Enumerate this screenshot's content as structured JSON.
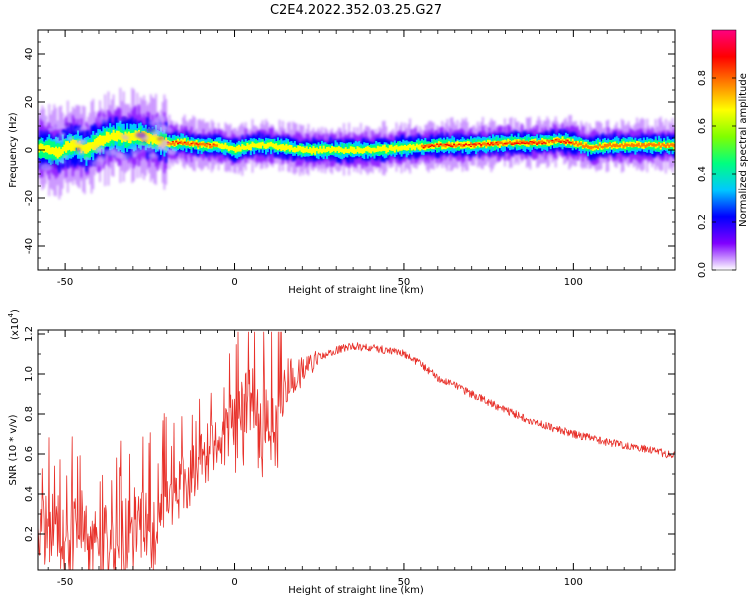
{
  "title": "C2E4.2022.352.03.25.G27",
  "chart_data": [
    {
      "type": "heatmap",
      "xlabel": "Height of straight line (km)",
      "ylabel": "Frequency (Hz)",
      "xlim": [
        -58,
        130
      ],
      "ylim": [
        -50,
        50
      ],
      "x_ticks": [
        -50,
        0,
        50,
        100
      ],
      "y_ticks": [
        -40,
        -20,
        0,
        20,
        40
      ],
      "ridge": {
        "x": [
          -58,
          -55,
          -52,
          -50,
          -47,
          -44,
          -41,
          -38,
          -35,
          -32,
          -29,
          -26,
          -23,
          -20,
          -15,
          -10,
          -5,
          0,
          5,
          10,
          15,
          20,
          30,
          40,
          50,
          60,
          70,
          80,
          85,
          90,
          95,
          100,
          105,
          110,
          120,
          130
        ],
        "freq": [
          1,
          0,
          -1,
          1,
          2,
          0,
          3,
          5,
          6,
          5,
          6,
          5,
          4,
          3,
          3,
          2,
          2,
          0,
          2,
          2,
          1,
          0,
          0,
          0,
          1,
          2,
          2,
          3,
          3,
          3,
          4,
          3,
          1,
          2,
          2,
          2
        ]
      },
      "colorbar": {
        "label": "Normalized spectral amplitude",
        "range": [
          0,
          1
        ],
        "ticks": [
          "0.0",
          "0.2",
          "0.4",
          "0.6",
          "0.8"
        ],
        "colors": [
          "#ffffff",
          "#8000ff",
          "#0000ff",
          "#00c8ff",
          "#00ff80",
          "#80ff00",
          "#ffff00",
          "#ff8000",
          "#ff0000",
          "#ff0080"
        ]
      },
      "grid": false
    },
    {
      "type": "line",
      "xlabel": "Height of straight line (km)",
      "ylabel": "SNR (10 * v/v)",
      "y_multiplier": "(x10",
      "y_exponent": "4",
      "xlim": [
        -58,
        130
      ],
      "ylim": [
        0.02,
        1.22
      ],
      "x_ticks": [
        -50,
        0,
        50,
        100
      ],
      "y_ticks": [
        "0.2",
        "0.4",
        "0.6",
        "0.8",
        "1.0",
        "1.2"
      ],
      "series": [
        {
          "color": "#e8312a",
          "x": [
            -58,
            -50,
            -40,
            -30,
            -22,
            -15,
            -10,
            -5,
            0,
            5,
            10,
            15,
            20,
            25,
            30,
            35,
            40,
            45,
            50,
            55,
            60,
            70,
            80,
            90,
            100,
            110,
            120,
            130
          ],
          "y": [
            0.25,
            0.22,
            0.2,
            0.24,
            0.3,
            0.5,
            0.6,
            0.7,
            0.8,
            0.88,
            0.75,
            0.9,
            1.02,
            1.08,
            1.12,
            1.14,
            1.13,
            1.12,
            1.1,
            1.05,
            0.98,
            0.9,
            0.82,
            0.75,
            0.7,
            0.66,
            0.63,
            0.59
          ]
        }
      ],
      "grid": false
    }
  ]
}
